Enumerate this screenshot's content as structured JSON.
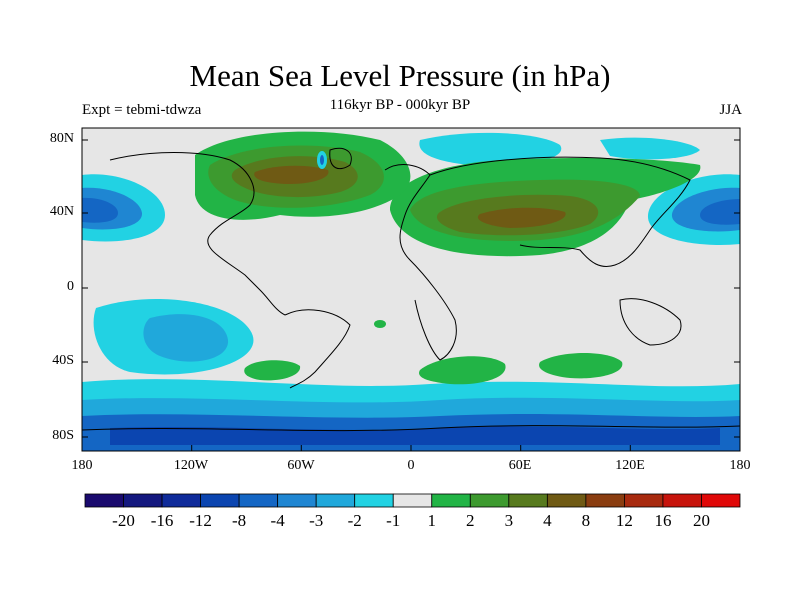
{
  "title": "Mean Sea Level Pressure (in hPa)",
  "subtitle_left": "Expt = tebmi-tdwza",
  "subtitle_center": "116kyr BP - 000kyr BP",
  "subtitle_right": "JJA",
  "lat_ticks": [
    "80N",
    "40N",
    "0",
    "40S",
    "80S"
  ],
  "lon_ticks": [
    "180",
    "120W",
    "60W",
    "0",
    "60E",
    "120E",
    "180"
  ],
  "colorbar": {
    "labels": [
      "-20",
      "-16",
      "-12",
      "-8",
      "-4",
      "-3",
      "-2",
      "-1",
      "1",
      "2",
      "3",
      "4",
      "8",
      "12",
      "16",
      "20"
    ],
    "colors": [
      "#1a0a6e",
      "#14187f",
      "#0f2b9a",
      "#0b45b0",
      "#1466c4",
      "#1f86d2",
      "#20a8db",
      "#22d2e3",
      "#e6e6e6",
      "#22b446",
      "#3d9a2f",
      "#577a1e",
      "#6f5a14",
      "#8a3d10",
      "#a82a0f",
      "#c7140c",
      "#e00808"
    ]
  },
  "colors": {
    "land_outline": "#000000",
    "neutral": "#e6e6e6"
  }
}
